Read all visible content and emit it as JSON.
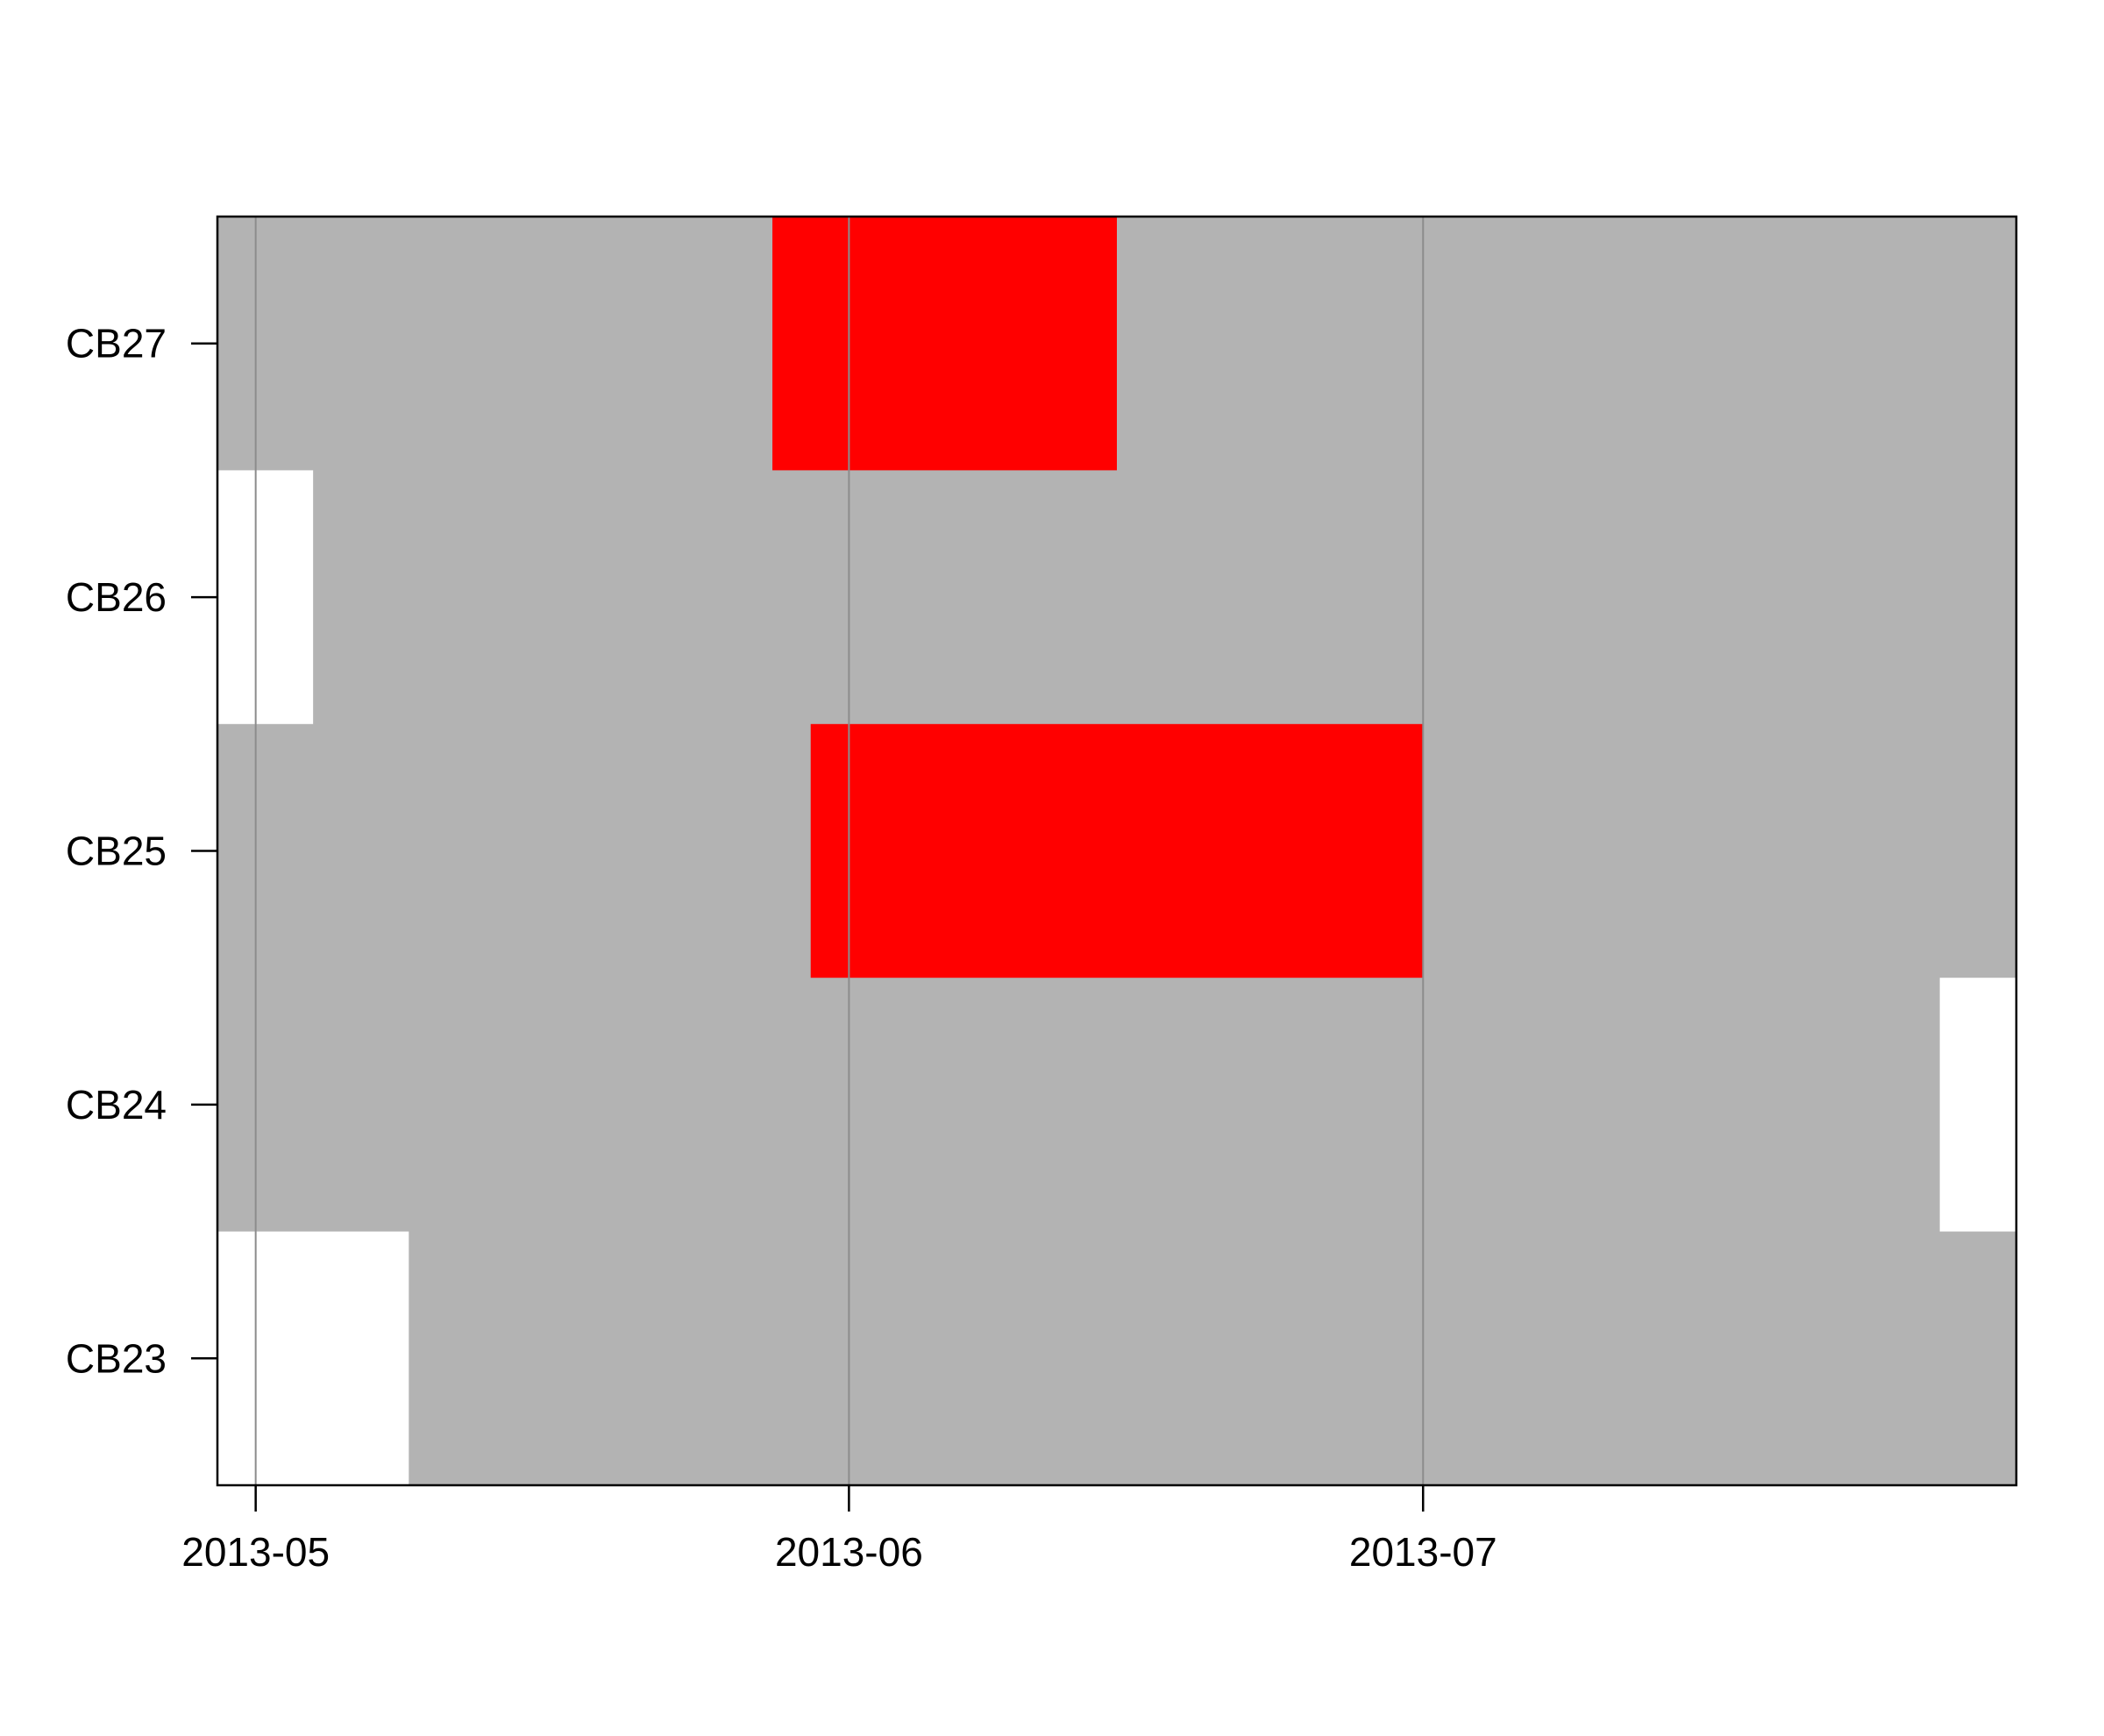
{
  "chart_data": {
    "type": "heatmap",
    "title": "",
    "xlabel": "",
    "ylabel": "",
    "x_axis": {
      "kind": "date",
      "range": [
        "2013-04-29",
        "2013-07-31"
      ],
      "ticks": [
        {
          "date": "2013-05-01",
          "label": "2013-05"
        },
        {
          "date": "2013-06-01",
          "label": "2013-06"
        },
        {
          "date": "2013-07-01",
          "label": "2013-07"
        }
      ]
    },
    "categories": [
      "CB23",
      "CB24",
      "CB25",
      "CB26",
      "CB27"
    ],
    "grid": true,
    "colors": {
      "background": "#b3b3b3",
      "flagged": "#ff0000",
      "no_data": "#ffffff",
      "gridline": "#8c8c8c",
      "axis": "#000000"
    },
    "segments": [
      {
        "category": "CB23",
        "status": "no_data",
        "start": "2013-04-29",
        "end": "2013-05-08"
      },
      {
        "category": "CB24",
        "status": "no_data",
        "start": "2013-07-28",
        "end": "2013-07-31"
      },
      {
        "category": "CB25",
        "status": "flagged",
        "start": "2013-05-30",
        "end": "2013-06-30"
      },
      {
        "category": "CB26",
        "status": "no_data",
        "start": "2013-04-29",
        "end": "2013-05-03"
      },
      {
        "category": "CB27",
        "status": "flagged",
        "start": "2013-05-28",
        "end": "2013-06-14"
      }
    ]
  }
}
